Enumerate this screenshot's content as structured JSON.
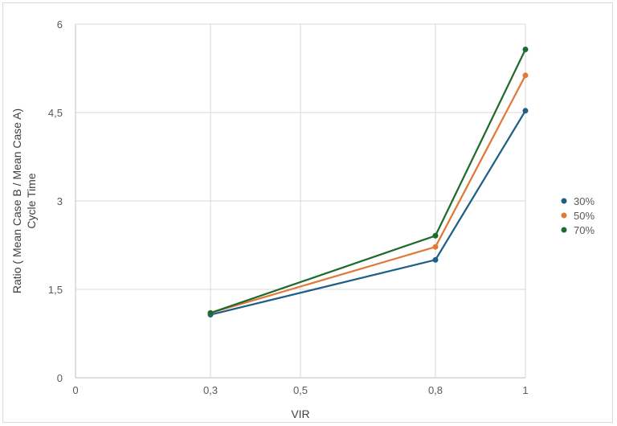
{
  "chart_data": {
    "type": "line",
    "title": "",
    "xlabel": "VIR",
    "ylabel_lines": [
      "Ratio ( Mean Case B /  Mean Case A)",
      "Cycle Time"
    ],
    "x": [
      0.3,
      0.8,
      1
    ],
    "xlim": [
      0,
      1
    ],
    "ylim": [
      0,
      6
    ],
    "xticks": [
      0,
      0.3,
      0.5,
      0.8,
      1
    ],
    "xtick_labels": [
      "0",
      "0,3",
      "0,5",
      "0,8",
      "1"
    ],
    "yticks": [
      0,
      1.5,
      3,
      4.5,
      6
    ],
    "ytick_labels": [
      "0",
      "1,5",
      "3",
      "4,5",
      "6"
    ],
    "grid": true,
    "legend_position": "right",
    "series": [
      {
        "name": "30%",
        "color": "#1f5f86",
        "values": [
          1.07,
          2.0,
          4.53
        ]
      },
      {
        "name": "50%",
        "color": "#e0793a",
        "values": [
          1.1,
          2.22,
          5.13
        ]
      },
      {
        "name": "70%",
        "color": "#1e6b2e",
        "values": [
          1.1,
          2.41,
          5.57
        ]
      }
    ]
  }
}
